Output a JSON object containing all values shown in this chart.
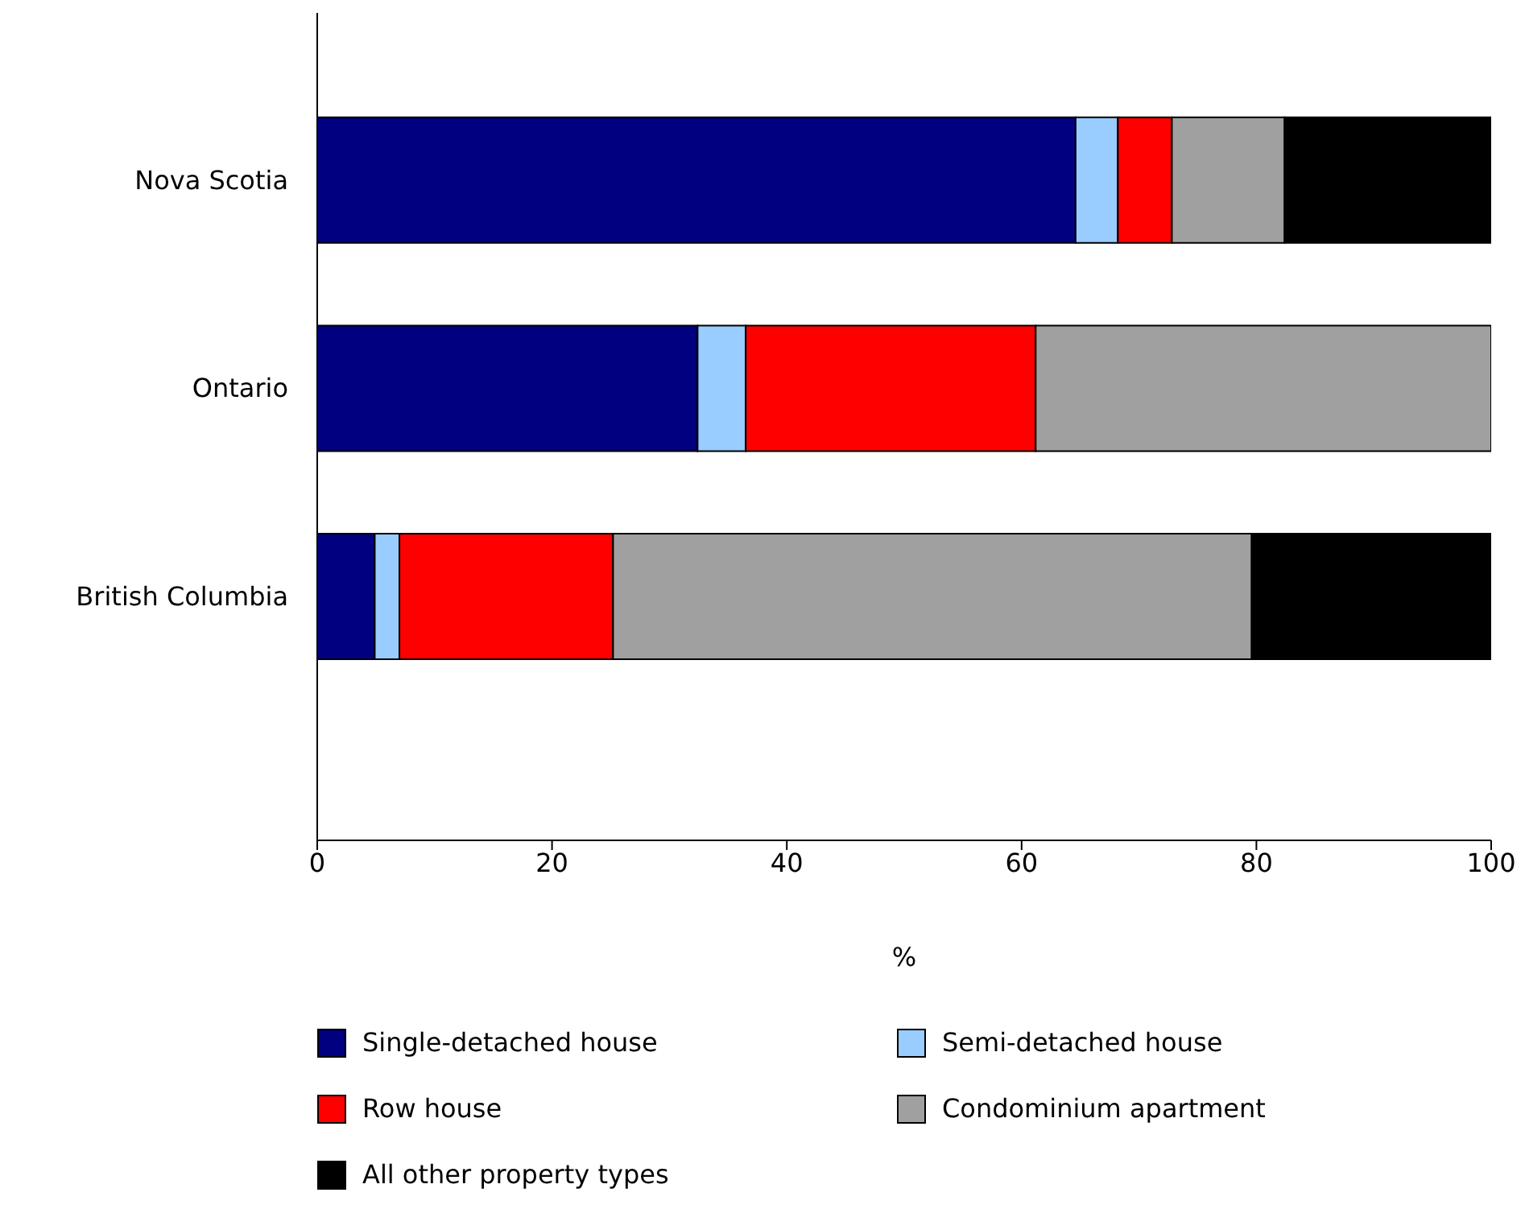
{
  "chart_data": {
    "type": "bar",
    "orientation": "horizontal",
    "stacked": true,
    "xlabel": "%",
    "categories": [
      "Nova Scotia",
      "Ontario",
      "British Columbia"
    ],
    "series": [
      {
        "name": "Single-detached house",
        "color": "#000080",
        "values": [
          64.6,
          32.4,
          4.9
        ]
      },
      {
        "name": "Semi-detached house",
        "color": "#99ccff",
        "values": [
          3.6,
          4.1,
          2.1
        ]
      },
      {
        "name": "Row house",
        "color": "#ff0000",
        "values": [
          4.6,
          24.7,
          18.2
        ]
      },
      {
        "name": "Condominium apartment",
        "color": "#a0a0a0",
        "values": [
          9.6,
          38.8,
          54.4
        ]
      },
      {
        "name": "All other property types",
        "color": "#000000",
        "values": [
          17.6,
          0,
          20.4
        ]
      }
    ],
    "xlim": [
      0,
      100
    ],
    "xticks": [
      0,
      20,
      40,
      60,
      80,
      100
    ],
    "grid": false,
    "legend": "bottom"
  }
}
